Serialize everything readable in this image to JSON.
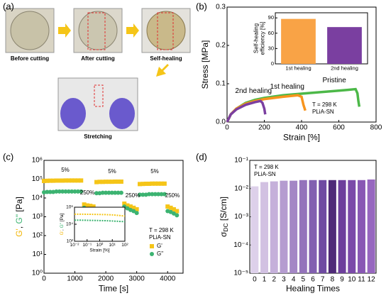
{
  "panel_labels": [
    "(a)",
    "(b)",
    "(c)",
    "(d)"
  ],
  "photos": [
    "Before cutting",
    "After cutting",
    "Self-healing",
    "Stretching"
  ],
  "chart_data": [
    {
      "type": "line",
      "xlabel": "Strain [%]",
      "ylabel": "Stress [MPa]",
      "xlim": [
        0,
        800
      ],
      "xticks": [
        0,
        200,
        400,
        600,
        800
      ],
      "ylim": [
        0,
        0.3
      ],
      "yticks": [
        {
          "value": 0,
          "label": "0.0"
        },
        0.1,
        0.2,
        0.3
      ],
      "annotation": [
        "T = 298 K",
        "PLiA-SN"
      ],
      "series": [
        {
          "name": "Pristine",
          "color": "#4cb848",
          "x": [
            0,
            20,
            50,
            100,
            150,
            200,
            300,
            400,
            500,
            600,
            650,
            690,
            700,
            705,
            710
          ],
          "values": [
            0,
            0.02,
            0.035,
            0.05,
            0.058,
            0.063,
            0.07,
            0.074,
            0.078,
            0.082,
            0.084,
            0.086,
            0.075,
            0.055,
            0.04
          ]
        },
        {
          "name": "1st healing",
          "color": "#f7941d",
          "x": [
            0,
            20,
            50,
            100,
            150,
            200,
            300,
            380,
            400,
            410,
            420
          ],
          "values": [
            0,
            0.02,
            0.035,
            0.048,
            0.055,
            0.06,
            0.066,
            0.07,
            0.066,
            0.045,
            0.03
          ]
        },
        {
          "name": "2nd healing",
          "color": "#7b3fa0",
          "x": [
            0,
            20,
            50,
            100,
            150,
            180,
            190,
            200,
            205
          ],
          "values": [
            0,
            0.02,
            0.033,
            0.045,
            0.052,
            0.055,
            0.05,
            0.035,
            0.02
          ]
        }
      ]
    },
    {
      "type": "bar",
      "ylabel": [
        "Self-healing",
        "efficiency [%]"
      ],
      "categories": [
        "1st healing",
        "2nd healing"
      ],
      "values": [
        88,
        72
      ],
      "colors": [
        "#f9a346",
        "#7a3fa0"
      ],
      "ylim": [
        0,
        100
      ],
      "yticks": [
        0,
        30,
        60,
        90
      ]
    },
    {
      "type": "scatter",
      "xlabel": "Time [s]",
      "ylabel": [
        {
          "text": "G'",
          "color": "#f2b400"
        },
        {
          "text": ", ",
          "color": "#000000"
        },
        {
          "text": "G\"",
          "color": "#3cb371"
        },
        {
          "text": " [Pa]",
          "color": "#000000"
        }
      ],
      "xlim": [
        0,
        4500
      ],
      "xticks": [
        0,
        1000,
        2000,
        3000,
        4000
      ],
      "ylim": [
        1,
        1000000
      ],
      "yscale": "log",
      "yticks": [
        {
          "value": 1,
          "label": "10⁰"
        },
        {
          "value": 10,
          "label": "10¹"
        },
        {
          "value": 100,
          "label": "10²"
        },
        {
          "value": 1000,
          "label": "10³"
        },
        {
          "value": 10000,
          "label": "10⁴"
        },
        {
          "value": 100000,
          "label": "10⁵"
        },
        {
          "value": 1000000,
          "label": "10⁶"
        }
      ],
      "annotations": [
        "5%",
        "250%",
        "5%",
        "250%",
        "5%",
        "250%"
      ],
      "annotation": [
        "T = 298 K",
        "PLiA-SN"
      ],
      "x": [
        0,
        100,
        200,
        300,
        400,
        500,
        600,
        700,
        800,
        900,
        1000,
        1100,
        1200,
        1300,
        1400,
        1500,
        1600,
        1700,
        1800,
        1900,
        2000,
        2100,
        2200,
        2300,
        2400,
        2500,
        2600,
        2700,
        2800,
        2900,
        3000,
        3100,
        3200,
        3300,
        3400,
        3500,
        3600,
        3700,
        3800,
        3900,
        4000,
        4100,
        4200,
        4300
      ],
      "series": [
        {
          "name": "G'",
          "color": "#f5c518",
          "marker": "square",
          "values": [
            80000,
            82000,
            83000,
            83000,
            84000,
            84000,
            84000,
            85000,
            85000,
            85000,
            85000,
            85000,
            85000,
            4500,
            4000,
            3800,
            3500,
            70000,
            72000,
            72000,
            73000,
            73000,
            73000,
            74000,
            74000,
            74000,
            5000,
            4000,
            3500,
            3000,
            2500,
            55000,
            56000,
            57000,
            57000,
            58000,
            58000,
            58000,
            58000,
            58000,
            3500,
            3000,
            2500,
            2000
          ]
        },
        {
          "name": "G\"",
          "color": "#3cb371",
          "marker": "circle",
          "values": [
            20000,
            21000,
            21000,
            21000,
            22000,
            22000,
            22000,
            22000,
            22000,
            22000,
            22000,
            22000,
            22000,
            3000,
            2500,
            2300,
            2200,
            18000,
            18000,
            19000,
            19000,
            19000,
            19000,
            19000,
            19000,
            19000,
            3500,
            2800,
            2300,
            2000,
            1600,
            15000,
            15000,
            15000,
            16000,
            16000,
            16000,
            16000,
            16000,
            16000,
            2000,
            1800,
            1500,
            1200
          ]
        }
      ]
    },
    {
      "type": "line",
      "xlabel": "Strain [%]",
      "ylabel": [
        {
          "text": "G'",
          "color": "#f2b400"
        },
        {
          "text": ", ",
          "color": "#000000"
        },
        {
          "text": "G\"",
          "color": "#3cb371"
        },
        {
          "text": " [Pa]",
          "color": "#000000"
        }
      ],
      "xlim": [
        0.01,
        100
      ],
      "xscale": "log",
      "xticks": [
        {
          "value": 0.01,
          "label": "10⁻²"
        },
        {
          "value": 0.1,
          "label": "10⁻¹"
        },
        {
          "value": 1,
          "label": "10⁰"
        },
        {
          "value": 10,
          "label": "10¹"
        },
        {
          "value": 100,
          "label": "10²"
        }
      ],
      "ylim": [
        100,
        1000000
      ],
      "yscale": "log",
      "yticks": [
        {
          "value": 100,
          "label": "10²"
        },
        {
          "value": 10000,
          "label": "10⁴"
        },
        {
          "value": 1000000,
          "label": "10⁶"
        }
      ],
      "series": [
        {
          "color": "#f5c518",
          "x": [
            0.01,
            0.03,
            0.1,
            0.3,
            1,
            3,
            10,
            30,
            100
          ],
          "values": [
            150000,
            150000,
            148000,
            145000,
            140000,
            135000,
            125000,
            110000,
            90000
          ]
        },
        {
          "color": "#3cb371",
          "x": [
            0.01,
            0.03,
            0.1,
            0.3,
            1,
            3,
            10,
            30,
            100
          ],
          "values": [
            30000,
            30000,
            29000,
            28000,
            27000,
            26000,
            24000,
            22000,
            20000
          ]
        }
      ]
    },
    {
      "type": "bar",
      "xlabel": "Healing Times",
      "ylabel": [
        {
          "text": "σ",
          "color": "#000000"
        },
        {
          "text": "DC",
          "color": "#000000",
          "sub": true
        },
        {
          "text": " [S/cm]",
          "color": "#000000"
        }
      ],
      "categories": [
        "0",
        "1",
        "2",
        "3",
        "4",
        "5",
        "6",
        "7",
        "8",
        "9",
        "10",
        "11",
        "12"
      ],
      "values": [
        0.012,
        0.017,
        0.018,
        0.019,
        0.019,
        0.02,
        0.02,
        0.02,
        0.02,
        0.02,
        0.02,
        0.02,
        0.021
      ],
      "colors": [
        "#ddd0ea",
        "#d2c1e2",
        "#c5b0da",
        "#b59cd0",
        "#a487c5",
        "#9473bb",
        "#8260b0",
        "#6f4ba2",
        "#4f2a78",
        "#6d3f9c",
        "#7b4aa9",
        "#8958b4",
        "#9767bf"
      ],
      "ylim": [
        1e-05,
        0.1
      ],
      "yscale": "log",
      "yticks": [
        {
          "value": 1e-05,
          "label": "10⁻⁵"
        },
        {
          "value": 0.0001,
          "label": "10⁻⁴"
        },
        {
          "value": 0.001,
          "label": "10⁻³"
        },
        {
          "value": 0.01,
          "label": "10⁻²"
        },
        {
          "value": 0.1,
          "label": "10⁻¹"
        }
      ],
      "annotation": [
        "T = 298 K",
        "PLiA-SN"
      ]
    }
  ]
}
